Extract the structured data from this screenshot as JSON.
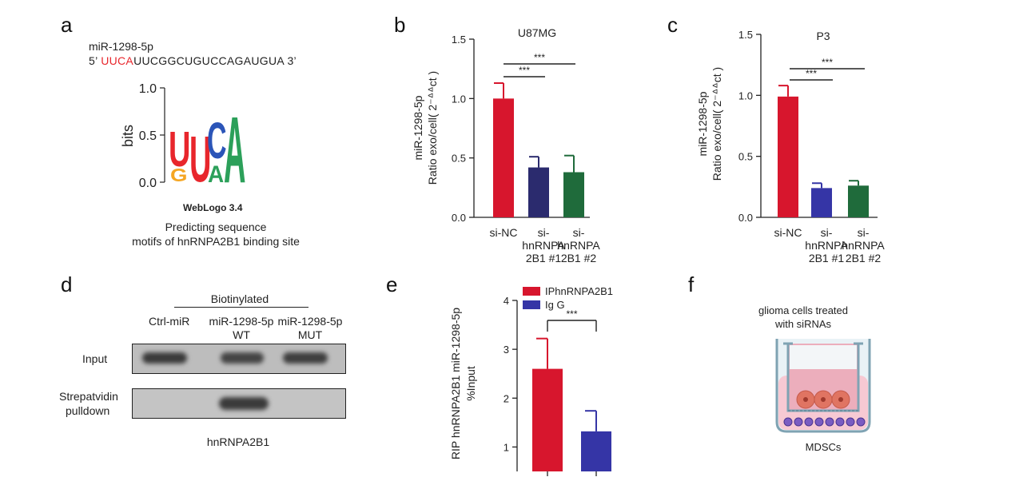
{
  "panels": {
    "a": {
      "label": "a",
      "mirna_name": "miR-1298-5p",
      "prime5": "5’",
      "motif": "UUCA",
      "rest": "UUCGGCUGUCCAGAUGUA",
      "prime3": "3’",
      "motif_color": "#e8262c",
      "logo_ylabel": "bits",
      "logo_ticks": [
        "1.0",
        "0.5",
        "0.0"
      ],
      "weblogo": "WebLogo 3.4",
      "caption1": "Predicting sequence",
      "caption2": "motifs of hnRNPA2B1 binding site",
      "logo_letters": [
        {
          "letter": "U",
          "color": "#e8262c"
        },
        {
          "letter": "G",
          "color": "#f5a623"
        },
        {
          "letter": "U",
          "color": "#e8262c"
        },
        {
          "letter": "C",
          "color": "#2b55b8"
        },
        {
          "letter": "A",
          "color": "#2ca05a"
        },
        {
          "letter": "A",
          "color": "#2ca05a"
        }
      ]
    },
    "b": {
      "label": "b"
    },
    "c": {
      "label": "c"
    },
    "d": {
      "label": "d",
      "header": "Biotinylated",
      "lanes": [
        "Ctrl-miR",
        "miR-1298-5p",
        "WT",
        "miR-1298-5p",
        "MUT"
      ],
      "row1": "Input",
      "row2a": "Strepatvidin",
      "row2b": "pulldown",
      "caption": "hnRNPA2B1"
    },
    "e": {
      "label": "e"
    },
    "f": {
      "label": "f",
      "title1": "glioma cells treated",
      "title2": "with siRNAs",
      "bottom": "MDSCs"
    }
  },
  "chart_data": [
    {
      "type": "bar",
      "title": "U87MG",
      "ylabel_line1": "miR-1298-5p",
      "ylabel_line2": "Ratio exo/cell( 2⁻ᐞᐞct )",
      "categories": [
        [
          "si-NC"
        ],
        [
          "si-",
          "hnRNPA",
          "2B1 #1"
        ],
        [
          "si-",
          "hnRNPA",
          "2B1 #2"
        ]
      ],
      "values": [
        1.0,
        0.42,
        0.38
      ],
      "errors": [
        0.13,
        0.09,
        0.14
      ],
      "colors": [
        "#d7162d",
        "#2b2b6e",
        "#1f6b3b"
      ],
      "ylim": [
        0,
        1.5
      ],
      "yticks": [
        "0.0",
        "0.5",
        "1.0",
        "1.5"
      ],
      "significance": [
        "***",
        "***"
      ]
    },
    {
      "type": "bar",
      "title": "P3",
      "ylabel_line1": "miR-1298-5p",
      "ylabel_line2": "Ratio exo/cell( 2⁻ᐞᐞct )",
      "categories": [
        [
          "si-NC"
        ],
        [
          "si-",
          "hnRNPA",
          "2B1 #1"
        ],
        [
          "si-",
          "hnRNPA",
          "2B1 #2"
        ]
      ],
      "values": [
        0.99,
        0.24,
        0.26
      ],
      "errors": [
        0.09,
        0.04,
        0.04
      ],
      "colors": [
        "#d7162d",
        "#3535a6",
        "#1f6b3b"
      ],
      "ylim": [
        0,
        1.5
      ],
      "yticks": [
        "0.0",
        "0.5",
        "1.0",
        "1.5"
      ],
      "significance": [
        "***",
        "***"
      ]
    },
    {
      "type": "bar",
      "ylabel_line1": "RIP hnRNPA2B1 miR-1298-5p",
      "ylabel_line2": "%Input",
      "values": [
        2.6,
        1.32
      ],
      "errors": [
        0.62,
        0.42
      ],
      "colors": [
        "#d7162d",
        "#3535a6"
      ],
      "ylim": [
        0.5,
        4
      ],
      "yticks": [
        "1",
        "2",
        "3",
        "4"
      ],
      "legend": [
        "IPhnRNPA2B1",
        "Ig G"
      ],
      "significance": [
        "***"
      ]
    }
  ]
}
